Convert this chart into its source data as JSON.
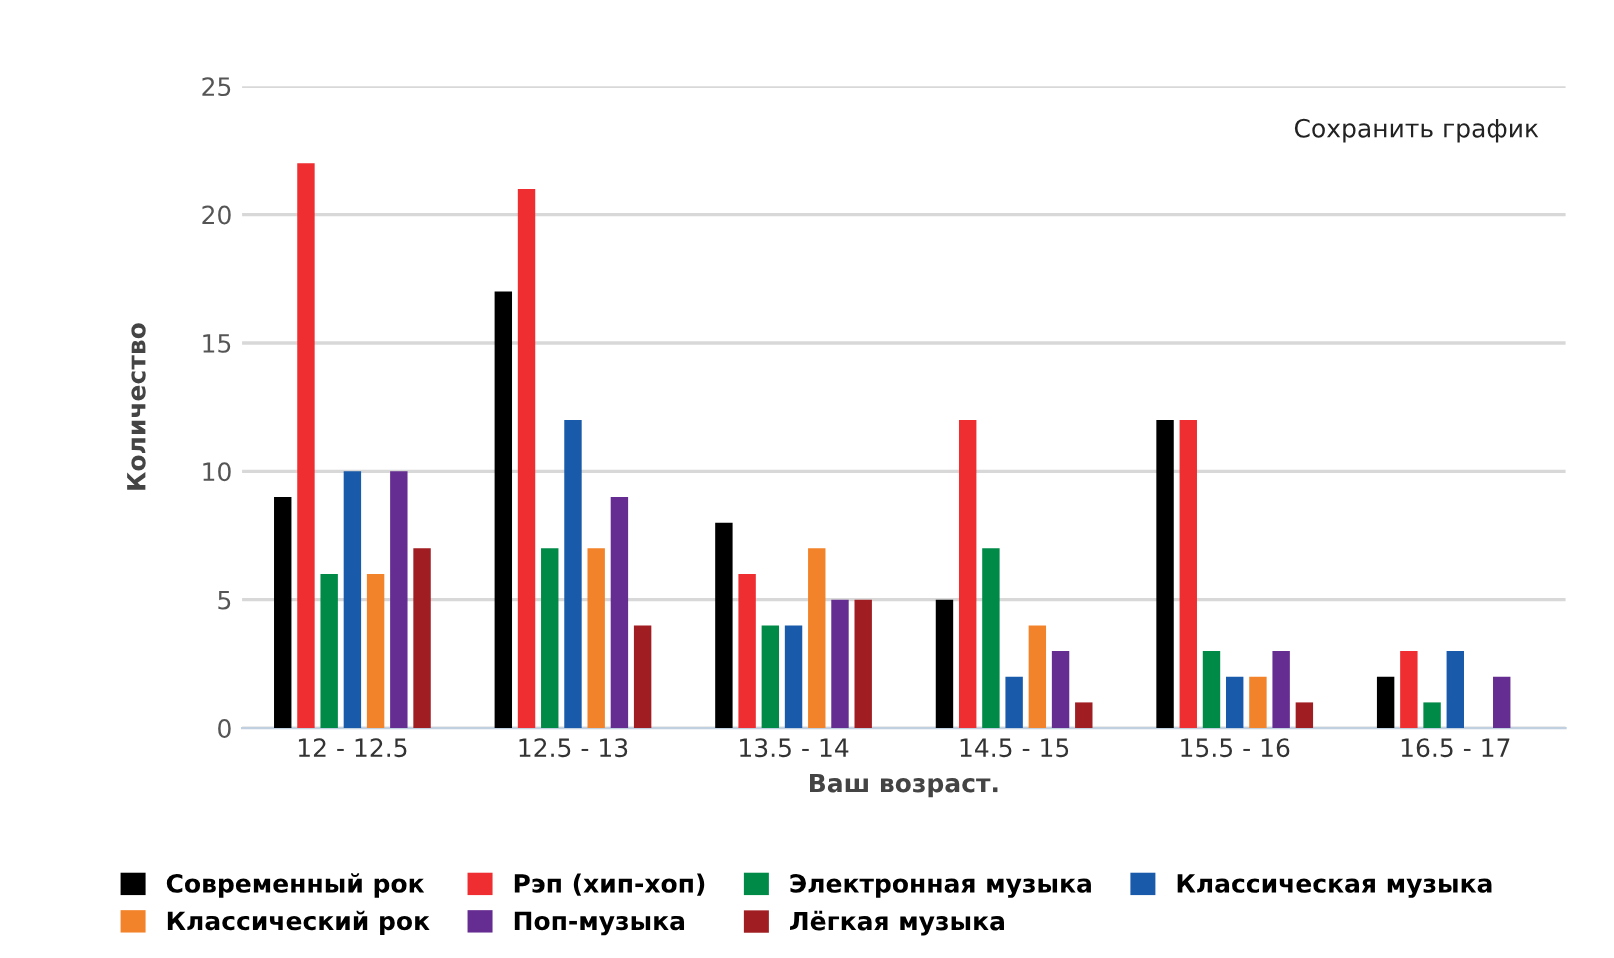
{
  "chart_data": {
    "type": "bar",
    "xlabel": "Ваш возраст.",
    "ylabel": "Количество",
    "categories": [
      "12 - 12.5",
      "12.5 - 13",
      "13.5 - 14",
      "14.5 - 15",
      "15.5 - 16",
      "16.5 - 17"
    ],
    "series": [
      {
        "name": "Современный рок",
        "color": "#000000",
        "values": [
          9,
          17,
          8,
          5,
          12,
          2
        ]
      },
      {
        "name": "Рэп (хип-хоп)",
        "color": "#ee2e31",
        "values": [
          22,
          21,
          6,
          12,
          12,
          3
        ]
      },
      {
        "name": "Электронная музыка",
        "color": "#008a48",
        "values": [
          6,
          7,
          4,
          7,
          3,
          1
        ]
      },
      {
        "name": "Классическая музыка",
        "color": "#1a5aaa",
        "values": [
          10,
          12,
          4,
          2,
          2,
          3
        ]
      },
      {
        "name": "Классический рок",
        "color": "#f3832a",
        "values": [
          6,
          7,
          7,
          4,
          2,
          null
        ]
      },
      {
        "name": "Поп-музыка",
        "color": "#652c91",
        "values": [
          10,
          9,
          5,
          3,
          3,
          2
        ]
      },
      {
        "name": "Лёгкая музыка",
        "color": "#a01d22",
        "values": [
          7,
          4,
          5,
          1,
          1,
          null
        ]
      }
    ],
    "ylim": [
      0,
      25
    ],
    "yticks": [
      0,
      5,
      10,
      15,
      20,
      25
    ],
    "grid": "y",
    "legend": "bottom",
    "annotations": [
      "Сохранить график"
    ]
  }
}
